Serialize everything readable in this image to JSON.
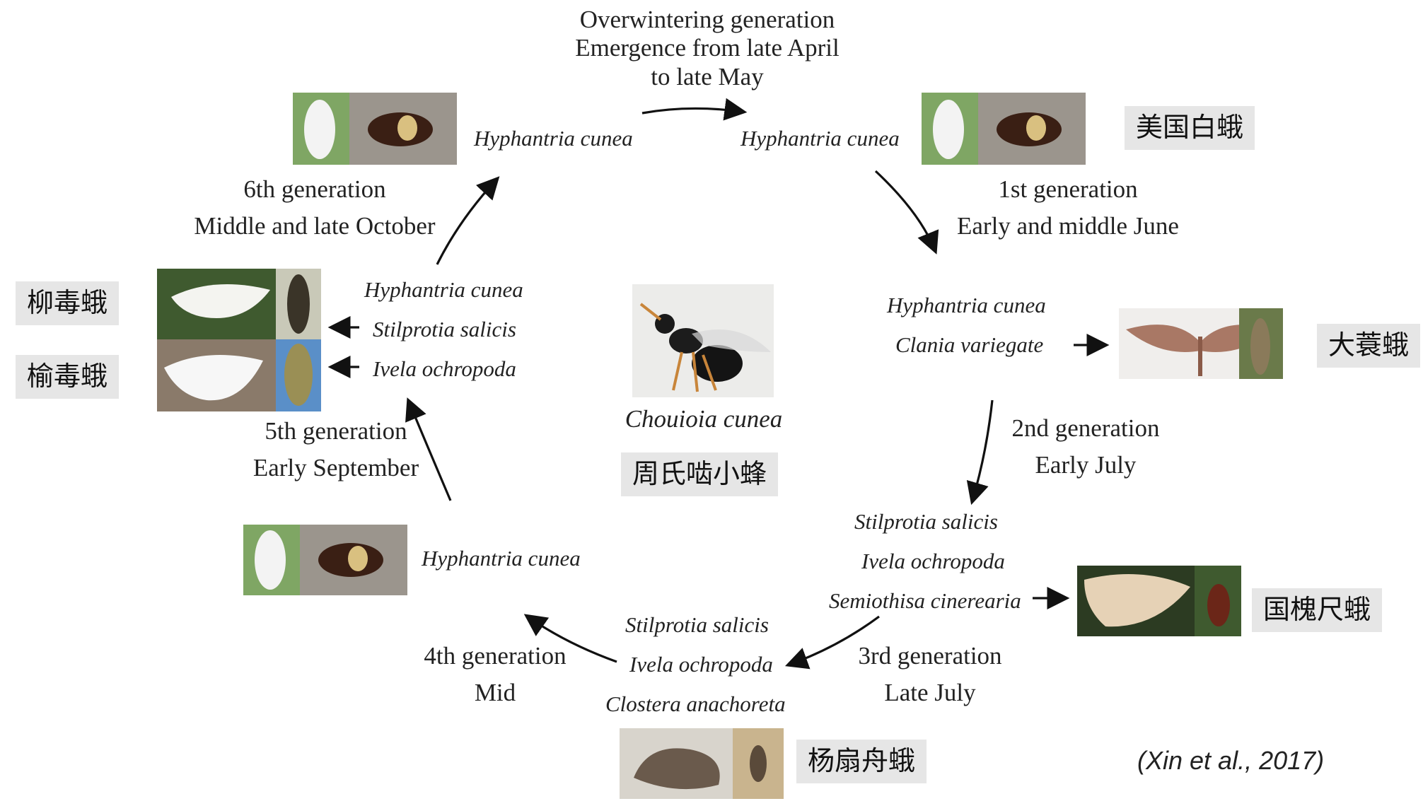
{
  "overwintering": {
    "line1": "Overwintering generation",
    "line2": "Emergence from late April",
    "line3": "to late May"
  },
  "generations": {
    "g1": {
      "name": "1st generation",
      "time": "Early and middle June"
    },
    "g2": {
      "name": "2nd generation",
      "time": "Early July"
    },
    "g3": {
      "name": "3rd generation",
      "time": "Late July"
    },
    "g4": {
      "name": "4th generation",
      "time": "Mid"
    },
    "g5": {
      "name": "5th generation",
      "time": "Early September"
    },
    "g6": {
      "name": "6th generation",
      "time": "Middle and late October"
    }
  },
  "hosts": {
    "top_left": "Hyphantria cunea",
    "top_right": "Hyphantria cunea",
    "right_mid": [
      "Hyphantria cunea",
      "Clania variegate"
    ],
    "right_low": [
      "Stilprotia salicis",
      "Ivela ochropoda",
      "Semiothisa cinerearia"
    ],
    "bottom": [
      "Stilprotia salicis",
      "Ivela ochropoda",
      "Clostera anachoreta"
    ],
    "left_low": "Hyphantria cunea",
    "left_mid": [
      "Hyphantria cunea",
      "Stilprotia salicis",
      "Ivela ochropoda"
    ]
  },
  "center": {
    "species": "Chouioia cunea",
    "cn_label": "周氏啮小蜂"
  },
  "cn_labels": {
    "fall_webworm": "美国白蛾",
    "bagworm": "大蓑蛾",
    "sophora_looper": "国槐尺蛾",
    "poplar_prominent": "杨扇舟蛾",
    "willow_tussock": "柳毒蛾",
    "elm_tussock": "榆毒蛾"
  },
  "citation": "(Xin et al., 2017)"
}
